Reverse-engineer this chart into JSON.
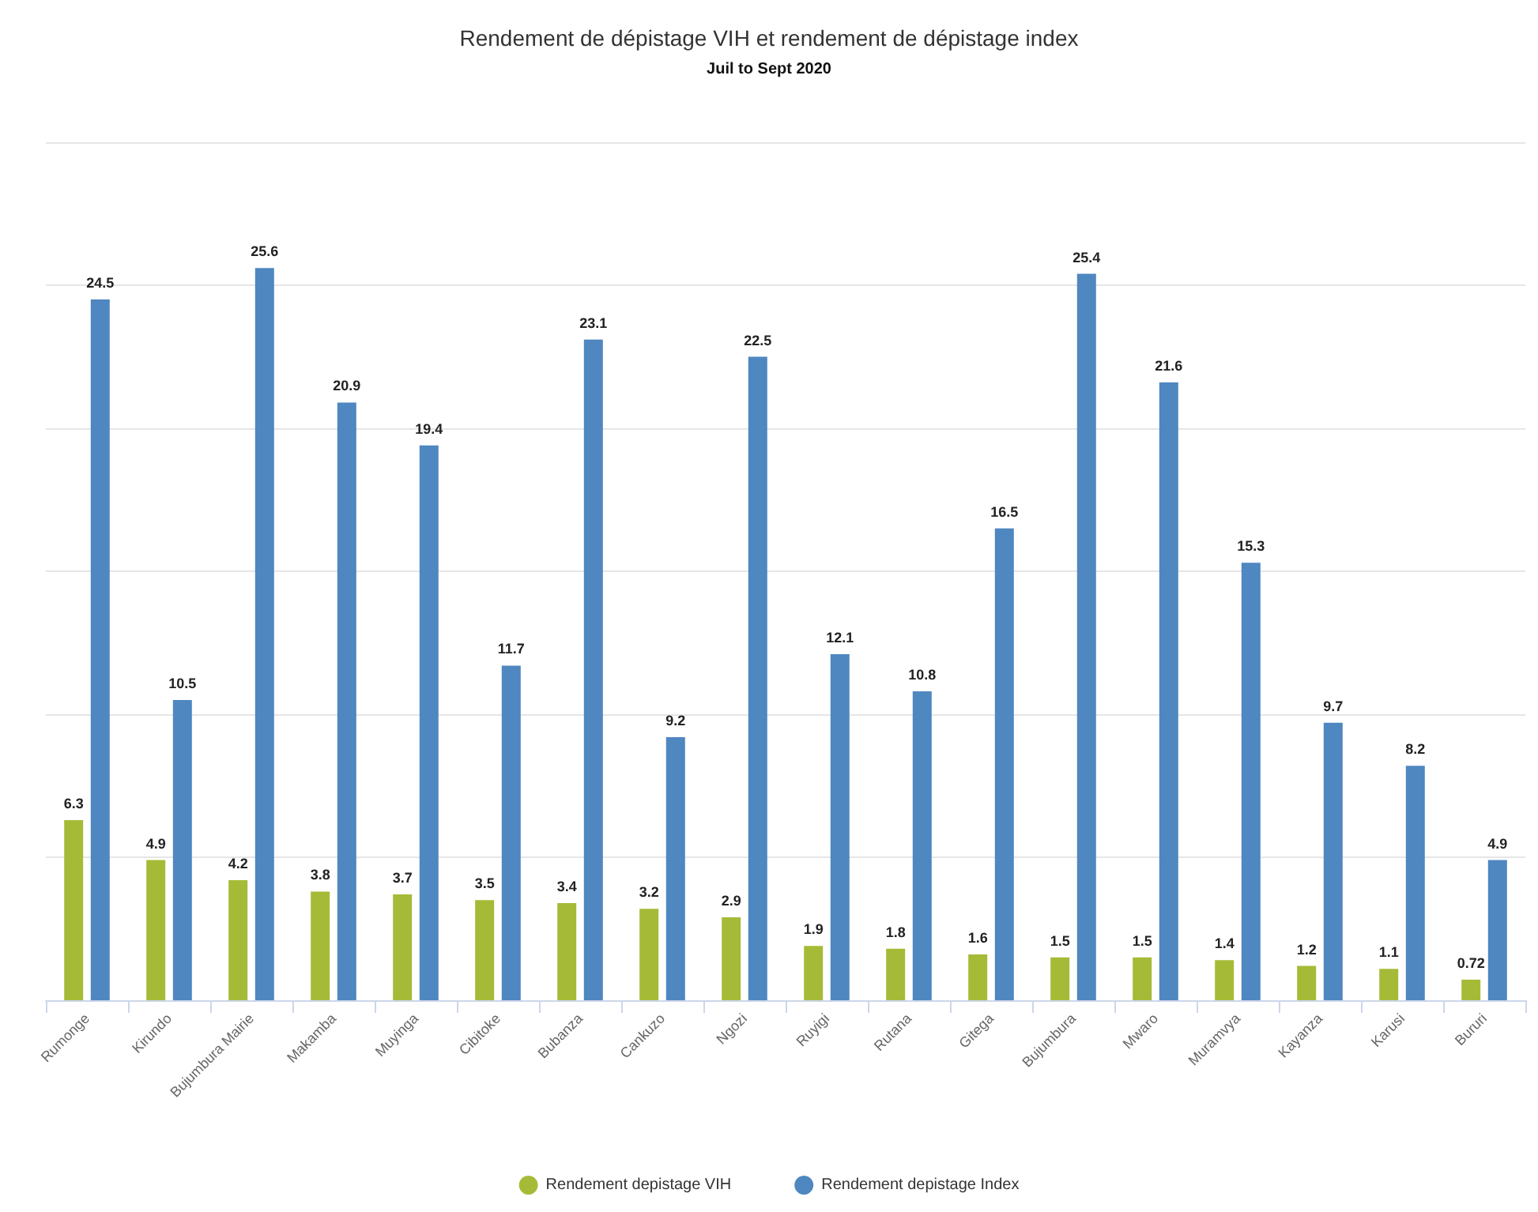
{
  "chart_data": {
    "type": "bar",
    "title": "Rendement de dépistage VIH et rendement de dépistage index",
    "subtitle": "Juil to Sept 2020",
    "categories": [
      "Rumonge",
      "Kirundo",
      "Bujumbura Mairie",
      "Makamba",
      "Muyinga",
      "Cibitoke",
      "Bubanza",
      "Cankuzo",
      "Ngozi",
      "Ruyigi",
      "Rutana",
      "Gitega",
      "Bujumbura",
      "Mwaro",
      "Muramvya",
      "Kayanza",
      "Karusi",
      "Bururi"
    ],
    "series": [
      {
        "name": "Rendement depistage VIH",
        "color": "#a5bb37",
        "values": [
          6.3,
          4.9,
          4.2,
          3.8,
          3.7,
          3.5,
          3.4,
          3.2,
          2.9,
          1.9,
          1.8,
          1.6,
          1.5,
          1.5,
          1.4,
          1.2,
          1.1,
          0.72
        ]
      },
      {
        "name": "Rendement depistage Index",
        "color": "#4f87c0",
        "values": [
          24.5,
          10.5,
          25.6,
          20.9,
          19.4,
          11.7,
          23.1,
          9.2,
          22.5,
          12.1,
          10.8,
          16.5,
          25.4,
          21.6,
          15.3,
          9.7,
          8.2,
          4.9
        ]
      }
    ],
    "ylim": [
      0,
      30
    ],
    "yticks": [
      {
        "value": 0,
        "label": null
      },
      {
        "value": 5,
        "label": null
      },
      {
        "value": 10,
        "label": null
      },
      {
        "value": 15,
        "label": null
      },
      {
        "value": 20,
        "label": null
      },
      {
        "value": 25,
        "label": null
      },
      {
        "value": 30,
        "label": null
      }
    ],
    "grid": "y",
    "legend": "bottom",
    "data_labels": true
  }
}
